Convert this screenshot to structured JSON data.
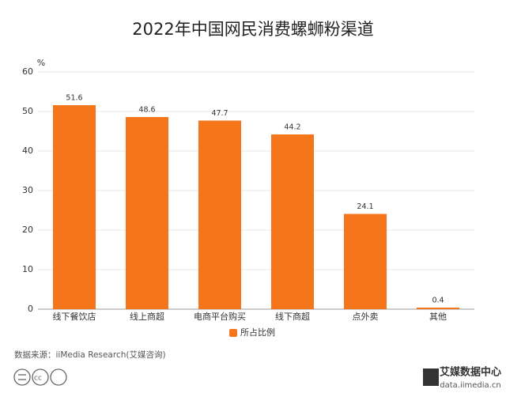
{
  "chart_data": {
    "type": "bar",
    "title": "2022年中国网民消费螺蛳粉渠道",
    "y_unit": "%",
    "categories": [
      "线下餐饮店",
      "线上商超",
      "电商平台购买",
      "线下商超",
      "点外卖",
      "其他"
    ],
    "series": [
      {
        "name": "所占比例",
        "color": "#f5761a",
        "values": [
          51.6,
          48.6,
          47.7,
          44.2,
          24.1,
          0.4
        ]
      }
    ],
    "ylim": [
      0,
      60
    ],
    "yticks": [
      0,
      10,
      20,
      30,
      40,
      50,
      60
    ],
    "grid": true,
    "legend": "bottom",
    "source": "数据来源：iiMedia Research(艾媒咨询)",
    "brand": {
      "name": "艾媒数据中心",
      "url": "data.iimedia.cn"
    }
  }
}
